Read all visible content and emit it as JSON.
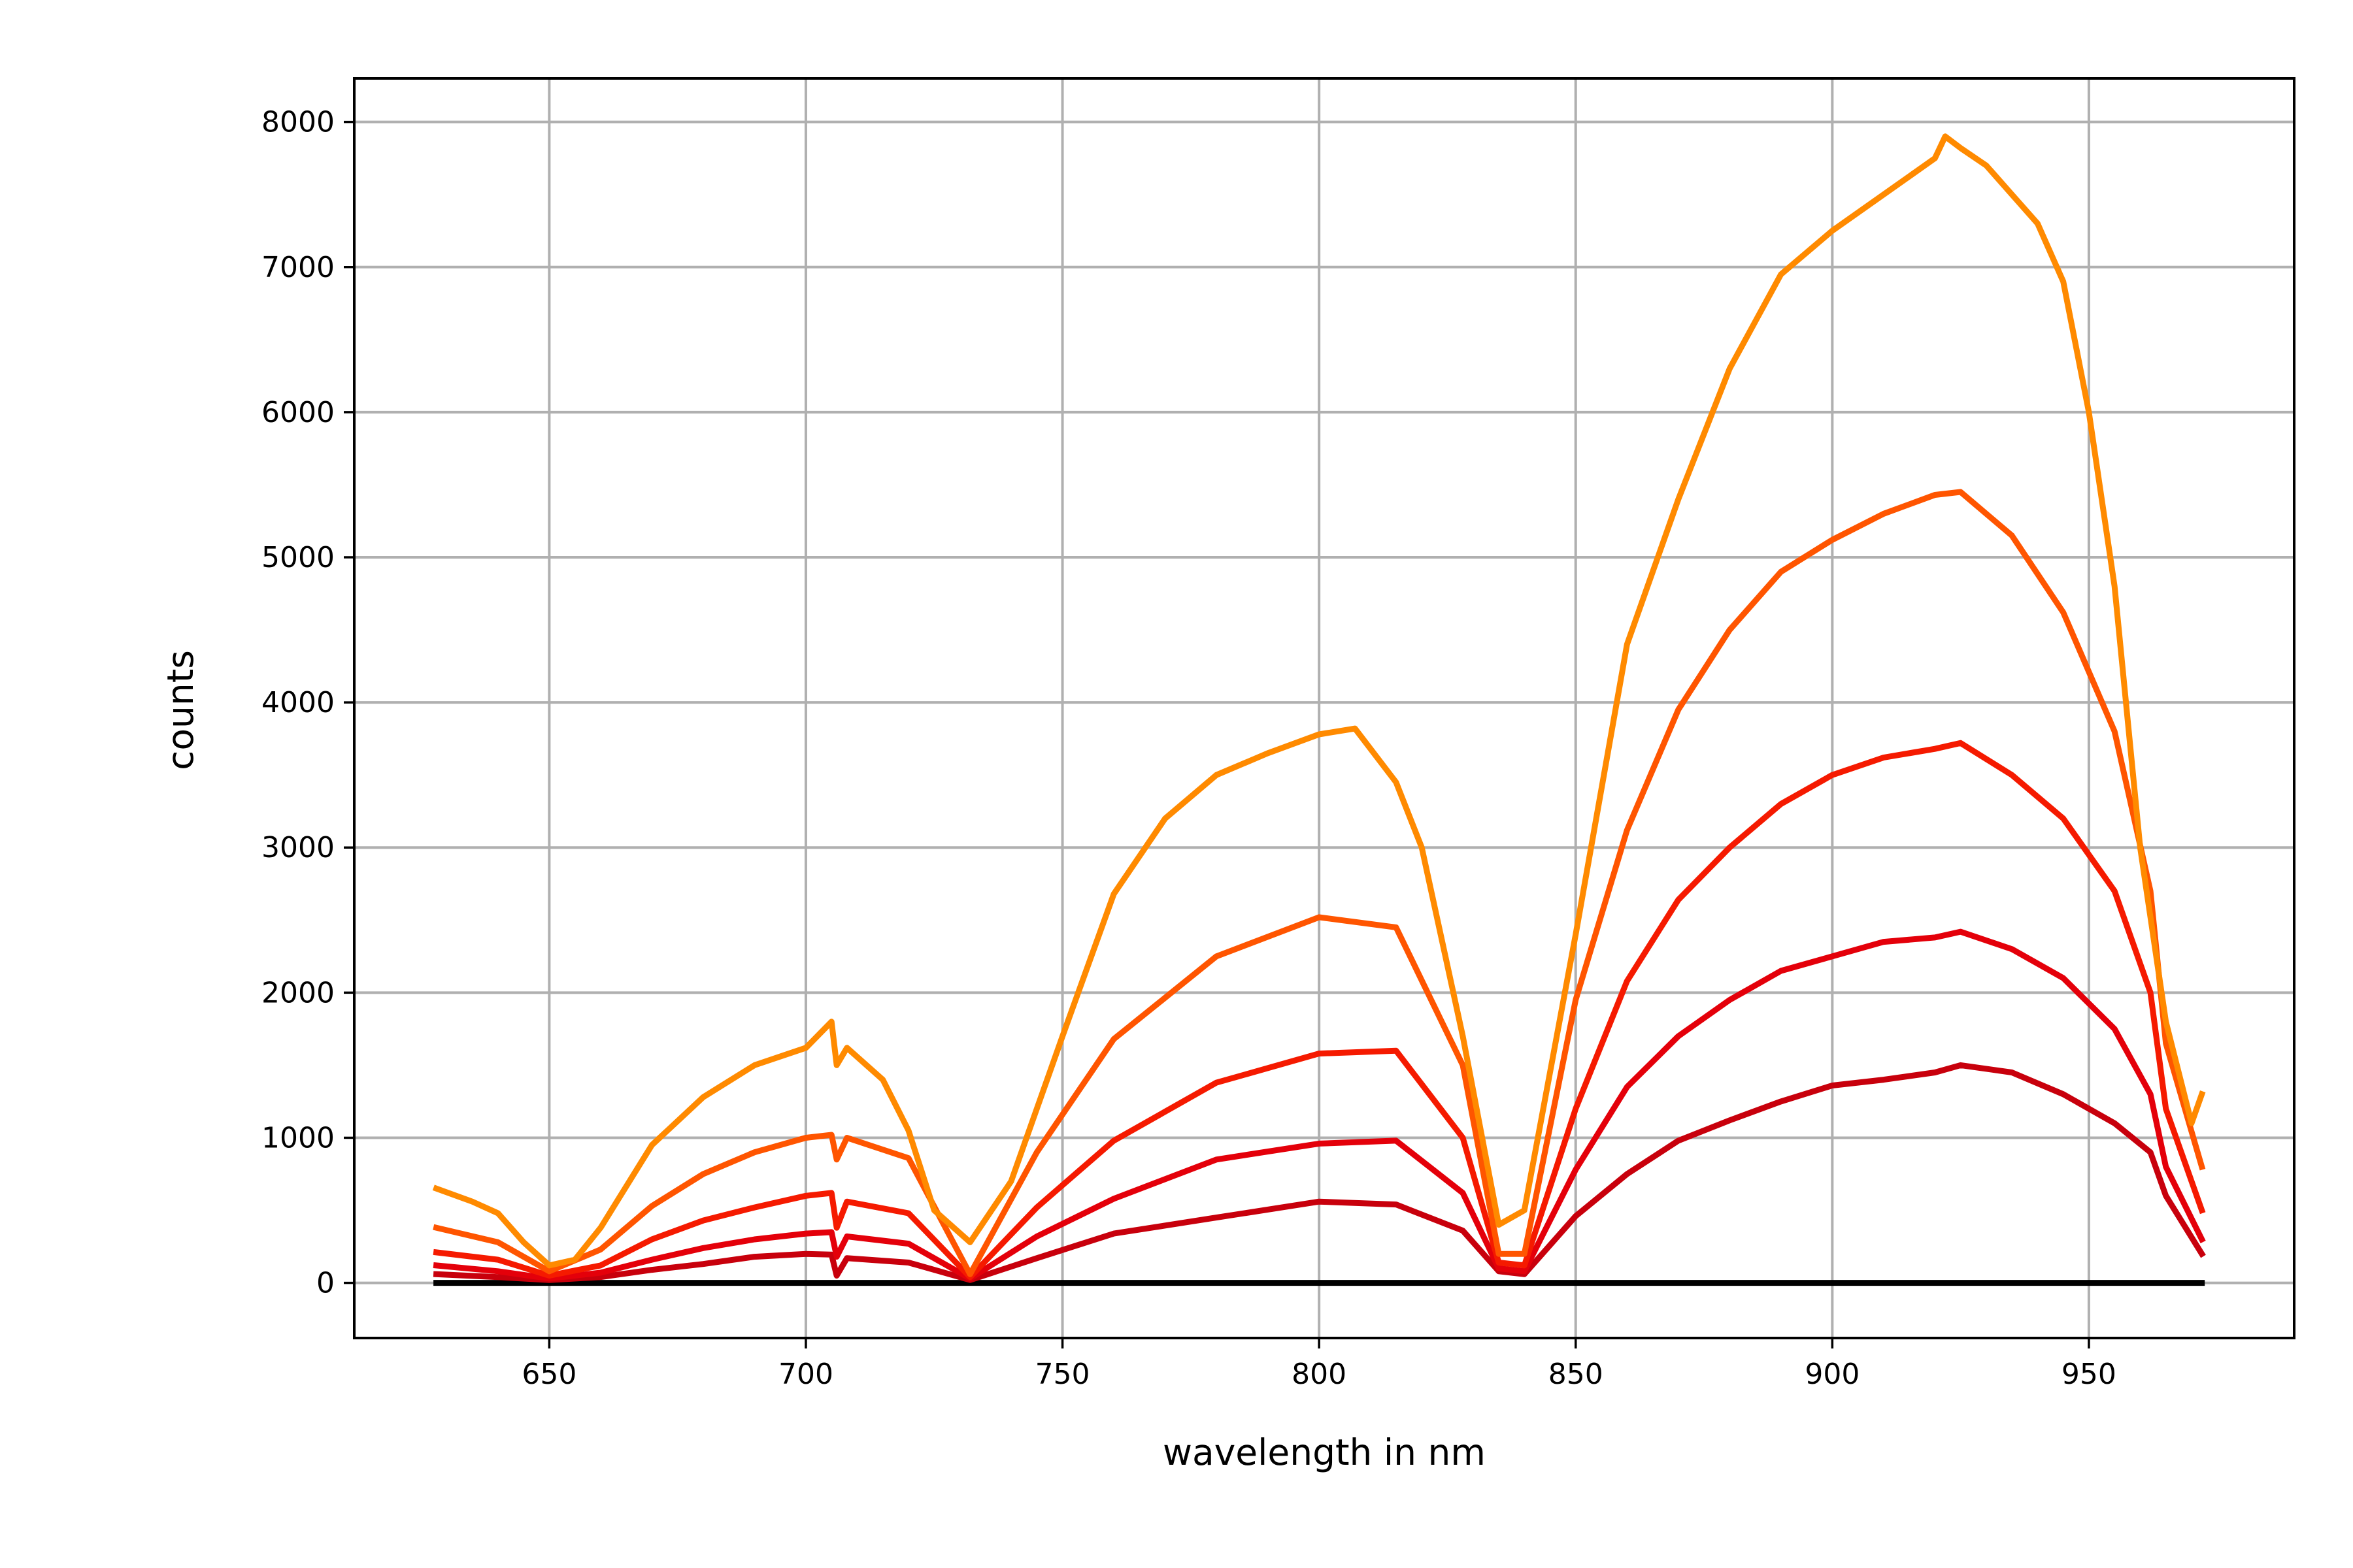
{
  "chart_data": {
    "type": "line",
    "title": "",
    "xlabel": "wavelength in nm",
    "ylabel": "counts",
    "xlim": [
      612,
      990
    ],
    "ylim": [
      -380,
      8300
    ],
    "xticks": [
      650,
      700,
      750,
      800,
      850,
      900,
      950
    ],
    "yticks": [
      0,
      1000,
      2000,
      3000,
      4000,
      5000,
      6000,
      7000,
      8000
    ],
    "grid": true,
    "legend": "none",
    "colors": {
      "baseline": "#000000",
      "s1": "#c8000c",
      "s2": "#e4000a",
      "s3": "#f51a00",
      "s4": "#ff5500",
      "s5": "#ff8a00"
    },
    "series": [
      {
        "color_key": "baseline",
        "x": [
          628,
          972
        ],
        "y": [
          0,
          0
        ]
      },
      {
        "color_key": "s1",
        "x": [
          628,
          640,
          650,
          660,
          670,
          680,
          690,
          700,
          705,
          706,
          708,
          720,
          732,
          745,
          760,
          780,
          800,
          815,
          828,
          835,
          840,
          850,
          860,
          870,
          880,
          890,
          900,
          910,
          920,
          925,
          935,
          945,
          955,
          962,
          965,
          972
        ],
        "y": [
          60,
          40,
          20,
          40,
          90,
          130,
          180,
          200,
          195,
          50,
          170,
          140,
          20,
          170,
          340,
          450,
          560,
          540,
          360,
          80,
          60,
          460,
          750,
          980,
          1120,
          1250,
          1360,
          1400,
          1450,
          1500,
          1450,
          1300,
          1100,
          900,
          600,
          200
        ]
      },
      {
        "color_key": "s2",
        "x": [
          628,
          640,
          650,
          660,
          670,
          680,
          690,
          700,
          705,
          706,
          708,
          720,
          732,
          745,
          760,
          780,
          800,
          815,
          828,
          835,
          840,
          850,
          860,
          870,
          880,
          890,
          900,
          910,
          920,
          925,
          935,
          945,
          955,
          962,
          965,
          972
        ],
        "y": [
          120,
          80,
          30,
          70,
          160,
          240,
          300,
          340,
          350,
          180,
          320,
          270,
          30,
          320,
          580,
          850,
          960,
          980,
          620,
          100,
          80,
          780,
          1350,
          1700,
          1950,
          2150,
          2250,
          2350,
          2380,
          2420,
          2300,
          2100,
          1750,
          1300,
          800,
          300
        ]
      },
      {
        "color_key": "s3",
        "x": [
          628,
          640,
          650,
          660,
          670,
          680,
          690,
          700,
          705,
          706,
          708,
          720,
          732,
          745,
          760,
          780,
          800,
          815,
          828,
          835,
          840,
          850,
          860,
          870,
          880,
          890,
          900,
          910,
          920,
          925,
          935,
          945,
          955,
          962,
          965,
          972
        ],
        "y": [
          210,
          160,
          50,
          120,
          300,
          430,
          520,
          600,
          620,
          380,
          560,
          480,
          40,
          520,
          980,
          1380,
          1580,
          1600,
          1000,
          140,
          120,
          1200,
          2080,
          2640,
          3000,
          3300,
          3500,
          3620,
          3680,
          3720,
          3500,
          3200,
          2700,
          2000,
          1200,
          500
        ]
      },
      {
        "color_key": "s4",
        "x": [
          628,
          640,
          650,
          660,
          670,
          680,
          690,
          700,
          705,
          706,
          708,
          720,
          732,
          745,
          760,
          780,
          800,
          815,
          828,
          835,
          840,
          850,
          860,
          870,
          880,
          890,
          900,
          910,
          920,
          925,
          935,
          945,
          955,
          962,
          965,
          972
        ],
        "y": [
          380,
          280,
          80,
          230,
          530,
          750,
          900,
          1000,
          1020,
          850,
          1000,
          860,
          60,
          900,
          1680,
          2250,
          2520,
          2450,
          1500,
          200,
          200,
          1950,
          3120,
          3950,
          4500,
          4900,
          5120,
          5300,
          5430,
          5450,
          5150,
          4620,
          3800,
          2700,
          1650,
          800
        ]
      },
      {
        "color_key": "s5",
        "x": [
          628,
          635,
          640,
          645,
          650,
          655,
          660,
          670,
          680,
          690,
          700,
          705,
          706,
          708,
          715,
          720,
          725,
          732,
          740,
          750,
          760,
          770,
          780,
          790,
          800,
          807,
          815,
          820,
          828,
          835,
          840,
          850,
          860,
          870,
          880,
          890,
          900,
          910,
          920,
          922,
          925,
          930,
          935,
          940,
          945,
          950,
          955,
          960,
          965,
          970,
          972
        ],
        "y": [
          650,
          560,
          480,
          280,
          120,
          160,
          380,
          950,
          1280,
          1500,
          1620,
          1800,
          1500,
          1620,
          1400,
          1050,
          500,
          280,
          700,
          1700,
          2680,
          3200,
          3500,
          3650,
          3780,
          3820,
          3450,
          3000,
          1700,
          400,
          500,
          2400,
          4400,
          5400,
          6300,
          6950,
          7250,
          7500,
          7750,
          7900,
          7820,
          7700,
          7500,
          7300,
          6900,
          6000,
          4800,
          3000,
          1800,
          1100,
          1300
        ]
      }
    ]
  }
}
